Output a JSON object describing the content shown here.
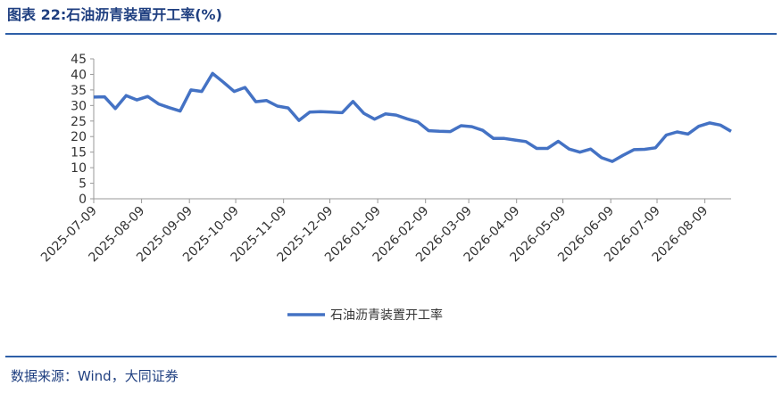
{
  "chart_data": {
    "type": "line",
    "title": "图表 22:石油沥青装置开工率(%)",
    "source": "数据来源：Wind，大同证券",
    "x": [
      "2025-07-09",
      "2025-07-16",
      "2025-07-23",
      "2025-07-30",
      "2025-08-06",
      "2025-08-13",
      "2025-08-20",
      "2025-08-27",
      "2025-09-03",
      "2025-09-10",
      "2025-09-17",
      "2025-09-24",
      "2025-10-01",
      "2025-10-08",
      "2025-10-15",
      "2025-10-22",
      "2025-10-29",
      "2025-11-05",
      "2025-11-12",
      "2025-11-19",
      "2025-11-26",
      "2025-12-03",
      "2025-12-10",
      "2025-12-17",
      "2025-12-24",
      "2025-12-31",
      "2026-01-07",
      "2026-01-14",
      "2026-01-21",
      "2026-01-28",
      "2026-02-04",
      "2026-02-11",
      "2026-02-18",
      "2026-02-25",
      "2026-03-04",
      "2026-03-11",
      "2026-03-18",
      "2026-03-25",
      "2026-04-01",
      "2026-04-08",
      "2026-04-15",
      "2026-04-22",
      "2026-04-29",
      "2026-05-06",
      "2026-05-13",
      "2026-05-20",
      "2026-05-27",
      "2026-06-03",
      "2026-06-10",
      "2026-06-17",
      "2026-06-24",
      "2026-07-01",
      "2026-07-08",
      "2026-07-15",
      "2026-07-22",
      "2026-07-29",
      "2026-08-05",
      "2026-08-12",
      "2026-08-19",
      "2026-08-26"
    ],
    "series": [
      {
        "name": "石油沥青装置开工率",
        "color": "#4472c4",
        "values": [
          32.7,
          32.8,
          29,
          33.2,
          31.8,
          32.9,
          30.5,
          29.3,
          28.2,
          35,
          34.5,
          40.3,
          37.5,
          34.5,
          35.8,
          31.2,
          31.6,
          29.8,
          29.2,
          25.2,
          27.9,
          28,
          27.9,
          27.7,
          31.3,
          27.5,
          25.6,
          27.3,
          26.9,
          25.7,
          24.7,
          21.9,
          21.7,
          21.6,
          23.5,
          23.2,
          22,
          19.4,
          19.4,
          18.9,
          18.4,
          16.2,
          16.2,
          18.5,
          16,
          15,
          16,
          13.2,
          12,
          14,
          15.8,
          15.9,
          16.4,
          20.5,
          21.5,
          20.8,
          23.3,
          24.4,
          23.7,
          21.7
        ]
      }
    ],
    "xlim": [
      "2025-07-09",
      "2026-08-26"
    ],
    "xticks": [
      "2025-07-09",
      "2025-08-09",
      "2025-09-09",
      "2025-10-09",
      "2025-11-09",
      "2025-12-09",
      "2026-01-09",
      "2026-02-09",
      "2026-03-09",
      "2026-04-09",
      "2026-05-09",
      "2026-06-09",
      "2026-07-09",
      "2026-08-09"
    ],
    "ylim": [
      0,
      45
    ],
    "yticks": [
      0,
      5,
      10,
      15,
      20,
      25,
      30,
      35,
      40,
      45
    ],
    "legend": "bottom"
  }
}
